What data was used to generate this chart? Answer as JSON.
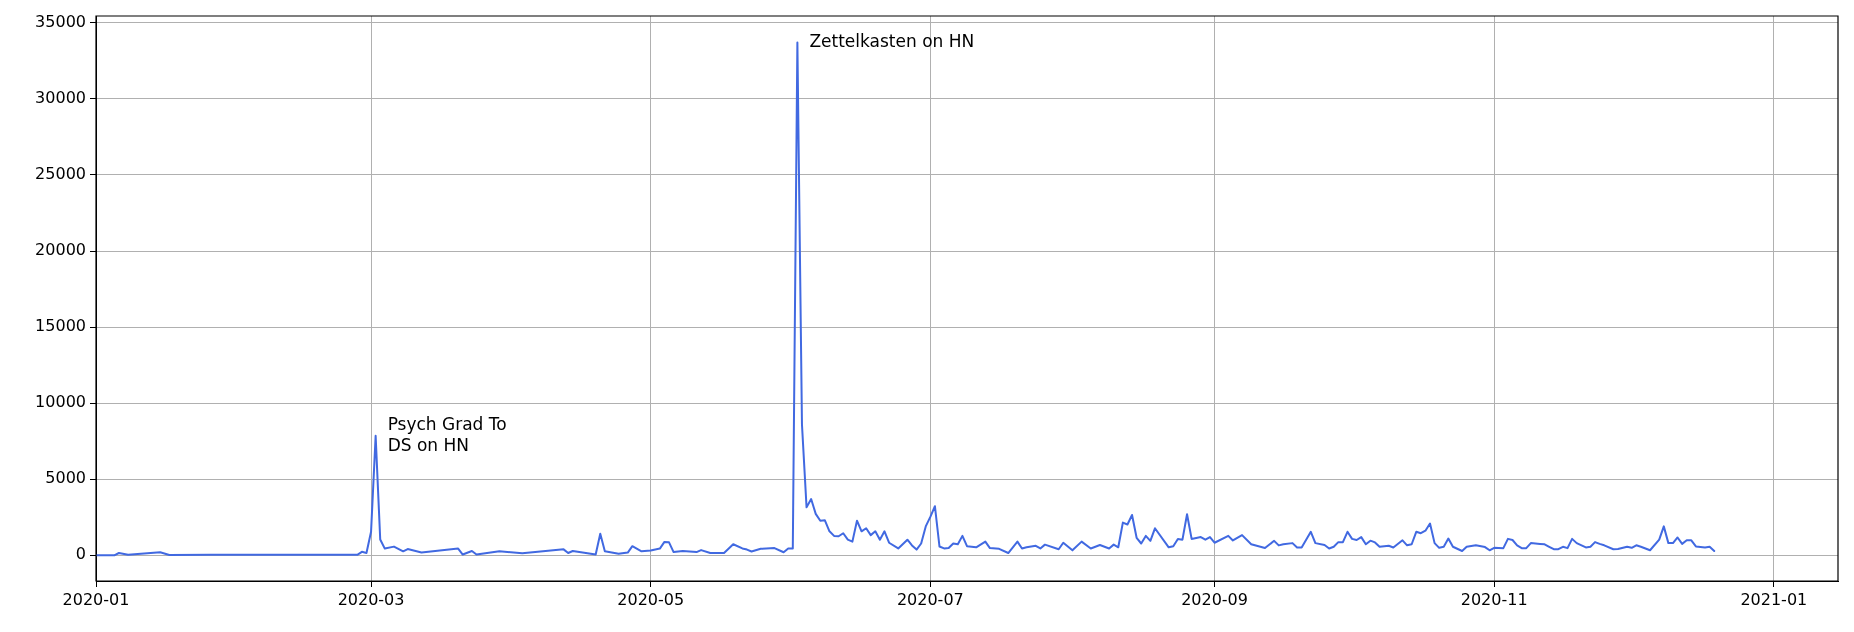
{
  "chart_data": {
    "type": "line",
    "x": [
      "2020-01-01",
      "2020-01-05",
      "2020-01-06",
      "2020-01-08",
      "2020-01-15",
      "2020-01-17",
      "2020-01-26",
      "2020-02-27",
      "2020-02-28",
      "2020-02-29",
      "2020-03-01",
      "2020-03-02",
      "2020-03-03",
      "2020-03-04",
      "2020-03-06",
      "2020-03-08",
      "2020-03-09",
      "2020-03-12",
      "2020-03-20",
      "2020-03-21",
      "2020-03-23",
      "2020-03-24",
      "2020-03-29",
      "2020-04-03",
      "2020-04-12",
      "2020-04-13",
      "2020-04-14",
      "2020-04-19",
      "2020-04-20",
      "2020-04-21",
      "2020-04-24",
      "2020-04-26",
      "2020-04-27",
      "2020-04-29",
      "2020-05-01",
      "2020-05-03",
      "2020-05-04",
      "2020-05-05",
      "2020-05-06",
      "2020-05-08",
      "2020-05-11",
      "2020-05-12",
      "2020-05-14",
      "2020-05-17",
      "2020-05-19",
      "2020-05-21",
      "2020-05-22",
      "2020-05-23",
      "2020-05-25",
      "2020-05-28",
      "2020-05-30",
      "2020-05-31",
      "2020-06-01",
      "2020-06-02",
      "2020-06-03",
      "2020-06-04",
      "2020-06-05",
      "2020-06-06",
      "2020-06-07",
      "2020-06-08",
      "2020-06-09",
      "2020-06-10",
      "2020-06-11",
      "2020-06-12",
      "2020-06-13",
      "2020-06-14",
      "2020-06-15",
      "2020-06-16",
      "2020-06-17",
      "2020-06-18",
      "2020-06-19",
      "2020-06-20",
      "2020-06-21",
      "2020-06-22",
      "2020-06-24",
      "2020-06-26",
      "2020-06-27",
      "2020-06-28",
      "2020-06-29",
      "2020-06-30",
      "2020-07-01",
      "2020-07-02",
      "2020-07-03",
      "2020-07-04",
      "2020-07-05",
      "2020-07-06",
      "2020-07-07",
      "2020-07-08",
      "2020-07-09",
      "2020-07-11",
      "2020-07-13",
      "2020-07-14",
      "2020-07-16",
      "2020-07-18",
      "2020-07-20",
      "2020-07-21",
      "2020-07-22",
      "2020-07-24",
      "2020-07-25",
      "2020-07-26",
      "2020-07-29",
      "2020-07-30",
      "2020-08-01",
      "2020-08-03",
      "2020-08-05",
      "2020-08-07",
      "2020-08-09",
      "2020-08-10",
      "2020-08-11",
      "2020-08-12",
      "2020-08-13",
      "2020-08-14",
      "2020-08-15",
      "2020-08-16",
      "2020-08-17",
      "2020-08-18",
      "2020-08-19",
      "2020-08-22",
      "2020-08-23",
      "2020-08-24",
      "2020-08-25",
      "2020-08-26",
      "2020-08-27",
      "2020-08-29",
      "2020-08-30",
      "2020-08-31",
      "2020-09-01",
      "2020-09-04",
      "2020-09-05",
      "2020-09-07",
      "2020-09-09",
      "2020-09-12",
      "2020-09-14",
      "2020-09-15",
      "2020-09-16",
      "2020-09-18",
      "2020-09-19",
      "2020-09-20",
      "2020-09-22",
      "2020-09-23",
      "2020-09-25",
      "2020-09-26",
      "2020-09-27",
      "2020-09-28",
      "2020-09-29",
      "2020-09-30",
      "2020-10-01",
      "2020-10-02",
      "2020-10-03",
      "2020-10-04",
      "2020-10-05",
      "2020-10-06",
      "2020-10-07",
      "2020-10-09",
      "2020-10-10",
      "2020-10-12",
      "2020-10-13",
      "2020-10-14",
      "2020-10-15",
      "2020-10-16",
      "2020-10-17",
      "2020-10-18",
      "2020-10-19",
      "2020-10-20",
      "2020-10-21",
      "2020-10-22",
      "2020-10-23",
      "2020-10-25",
      "2020-10-26",
      "2020-10-28",
      "2020-10-30",
      "2020-10-31",
      "2020-11-01",
      "2020-11-03",
      "2020-11-04",
      "2020-11-05",
      "2020-11-06",
      "2020-11-07",
      "2020-11-08",
      "2020-11-09",
      "2020-11-11",
      "2020-11-12",
      "2020-11-13",
      "2020-11-14",
      "2020-11-15",
      "2020-11-16",
      "2020-11-17",
      "2020-11-18",
      "2020-11-19",
      "2020-11-21",
      "2020-11-22",
      "2020-11-23",
      "2020-11-24",
      "2020-11-25",
      "2020-11-27",
      "2020-11-28",
      "2020-11-30",
      "2020-12-01",
      "2020-12-02",
      "2020-12-03",
      "2020-12-05",
      "2020-12-07",
      "2020-12-08",
      "2020-12-09",
      "2020-12-10",
      "2020-12-11",
      "2020-12-12",
      "2020-12-13",
      "2020-12-14",
      "2020-12-15",
      "2020-12-17",
      "2020-12-18",
      "2020-12-19"
    ],
    "series": [
      {
        "color": "#4169e1",
        "values": [
          0,
          0,
          150,
          30,
          200,
          20,
          30,
          30,
          230,
          150,
          1550,
          7850,
          1040,
          440,
          570,
          260,
          410,
          180,
          440,
          50,
          280,
          50,
          260,
          130,
          390,
          150,
          280,
          50,
          1420,
          260,
          100,
          180,
          600,
          260,
          310,
          440,
          880,
          850,
          210,
          280,
          210,
          340,
          150,
          150,
          725,
          450,
          375,
          250,
          425,
          475,
          200,
          450,
          450,
          33700,
          8600,
          3150,
          3700,
          2725,
          2275,
          2300,
          1575,
          1275,
          1250,
          1450,
          1025,
          900,
          2275,
          1575,
          1775,
          1325,
          1575,
          1025,
          1575,
          825,
          450,
          1025,
          650,
          375,
          775,
          1900,
          2525,
          3225,
          575,
          450,
          475,
          775,
          725,
          1275,
          600,
          525,
          900,
          475,
          425,
          150,
          900,
          450,
          525,
          625,
          450,
          700,
          400,
          825,
          325,
          900,
          450,
          675,
          450,
          700,
          525,
          2150,
          2025,
          2650,
          1150,
          775,
          1275,
          950,
          1775,
          525,
          600,
          1075,
          1025,
          2700,
          1075,
          1200,
          1025,
          1200,
          825,
          1275,
          975,
          1325,
          725,
          475,
          950,
          650,
          725,
          800,
          515,
          515,
          1545,
          800,
          680,
          445,
          560,
          865,
          865,
          1545,
          1080,
          1005,
          1195,
          725,
          960,
          845,
          560,
          630,
          515,
          985,
          655,
          725,
          1545,
          1450,
          1615,
          2085,
          800,
          490,
          560,
          1100,
          560,
          280,
          560,
          655,
          540,
          330,
          490,
          470,
          1080,
          1005,
          655,
          470,
          470,
          800,
          750,
          725,
          560,
          400,
          400,
          560,
          470,
          1080,
          800,
          515,
          560,
          865,
          750,
          655,
          400,
          420,
          560,
          490,
          655,
          560,
          330,
          1030,
          1900,
          800,
          800,
          1170,
          750,
          985,
          985,
          585,
          515,
          560,
          280
        ]
      }
    ],
    "xlim": [
      "2020-01-01",
      "2021-01-15"
    ],
    "xticks": [
      {
        "value": "2020-01-01",
        "label": "2020-01"
      },
      {
        "value": "2020-03-01",
        "label": "2020-03"
      },
      {
        "value": "2020-05-01",
        "label": "2020-05"
      },
      {
        "value": "2020-07-01",
        "label": "2020-07"
      },
      {
        "value": "2020-09-01",
        "label": "2020-09"
      },
      {
        "value": "2020-11-01",
        "label": "2020-11"
      },
      {
        "value": "2021-01-01",
        "label": "2021-01"
      }
    ],
    "ylim": [
      -1690,
      35450
    ],
    "yticks": [
      0,
      5000,
      10000,
      15000,
      20000,
      25000,
      30000,
      35000
    ],
    "grid": true,
    "legend": false,
    "marker": "none",
    "line_style": "solid",
    "annotations": [
      {
        "text": "Psych Grad To\nDS on HN",
        "x": "2020-03-02",
        "y": 7850
      },
      {
        "text": "Zettelkasten on HN",
        "x": "2020-06-02",
        "y": 33700
      }
    ]
  }
}
